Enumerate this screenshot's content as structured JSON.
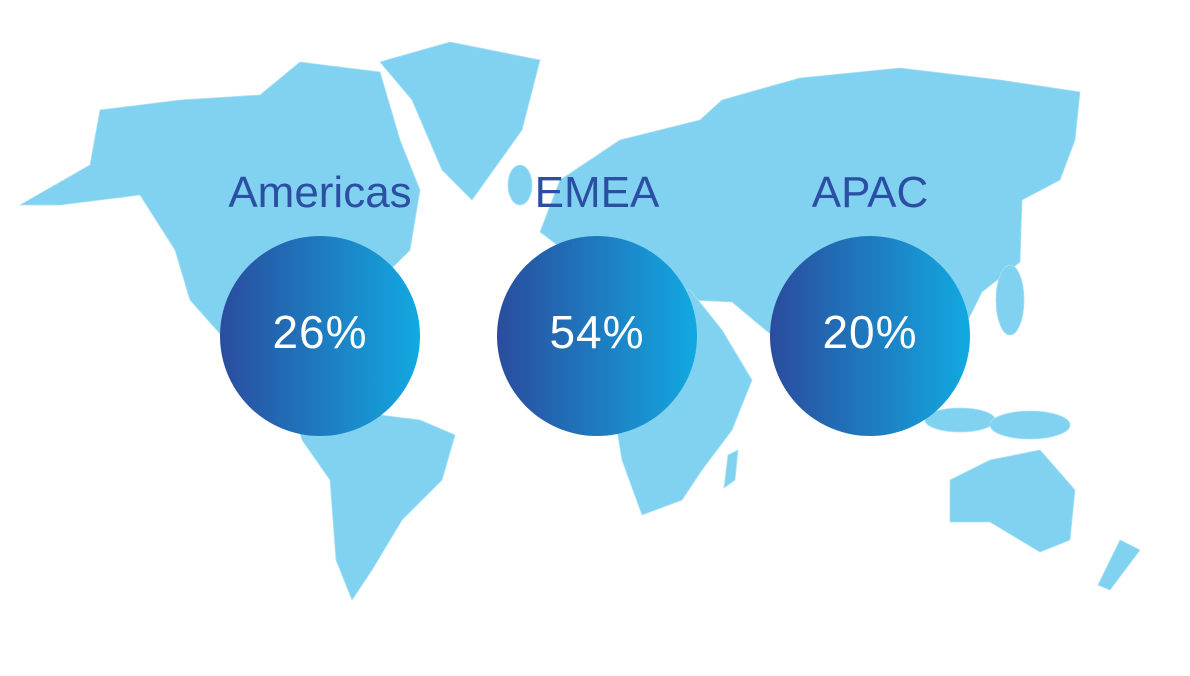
{
  "regions": [
    {
      "name": "Americas",
      "share": "26%"
    },
    {
      "name": "EMEA",
      "share": "54%"
    },
    {
      "name": "APAC",
      "share": "20%"
    }
  ]
}
